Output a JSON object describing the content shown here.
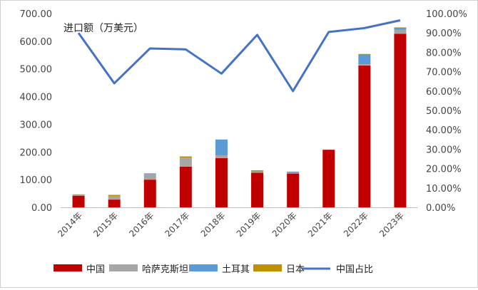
{
  "chart_data": {
    "type": "bar",
    "stacked": true,
    "annotation": "进口额（万美元）",
    "categories": [
      "2014年",
      "2015年",
      "2016年",
      "2017年",
      "2018年",
      "2019年",
      "2020年",
      "2021年",
      "2022年",
      "2023年"
    ],
    "series": [
      {
        "name": "中国",
        "color": "#C00000",
        "values": [
          42,
          28,
          100,
          147,
          178,
          125,
          122,
          208,
          512,
          627
        ]
      },
      {
        "name": "哈萨克斯坦",
        "color": "#A6A6A6",
        "values": [
          3,
          12,
          20,
          32,
          10,
          4,
          3,
          0,
          5,
          15
        ]
      },
      {
        "name": "土耳其",
        "color": "#5B9BD5",
        "values": [
          1,
          1,
          2,
          1,
          57,
          1,
          4,
          0,
          35,
          4
        ]
      },
      {
        "name": "日本",
        "color": "#BF9000",
        "values": [
          1,
          4,
          1,
          4,
          0,
          4,
          0,
          0,
          2,
          4
        ]
      }
    ],
    "line_series": {
      "name": "中国占比",
      "color": "#4472C4",
      "values": [
        90.0,
        64.0,
        82.0,
        81.5,
        69.0,
        89.0,
        60.0,
        90.5,
        92.5,
        96.5
      ]
    },
    "ylim": [
      0,
      700
    ],
    "yticks": [
      "0.00",
      "100.00",
      "200.00",
      "300.00",
      "400.00",
      "500.00",
      "600.00",
      "700.00"
    ],
    "y2lim": [
      0,
      100
    ],
    "y2ticks": [
      "0.00%",
      "10.00%",
      "20.00%",
      "30.00%",
      "40.00%",
      "50.00%",
      "60.00%",
      "70.00%",
      "80.00%",
      "90.00%",
      "100.00%"
    ],
    "legend_position": "bottom",
    "grid": false
  }
}
